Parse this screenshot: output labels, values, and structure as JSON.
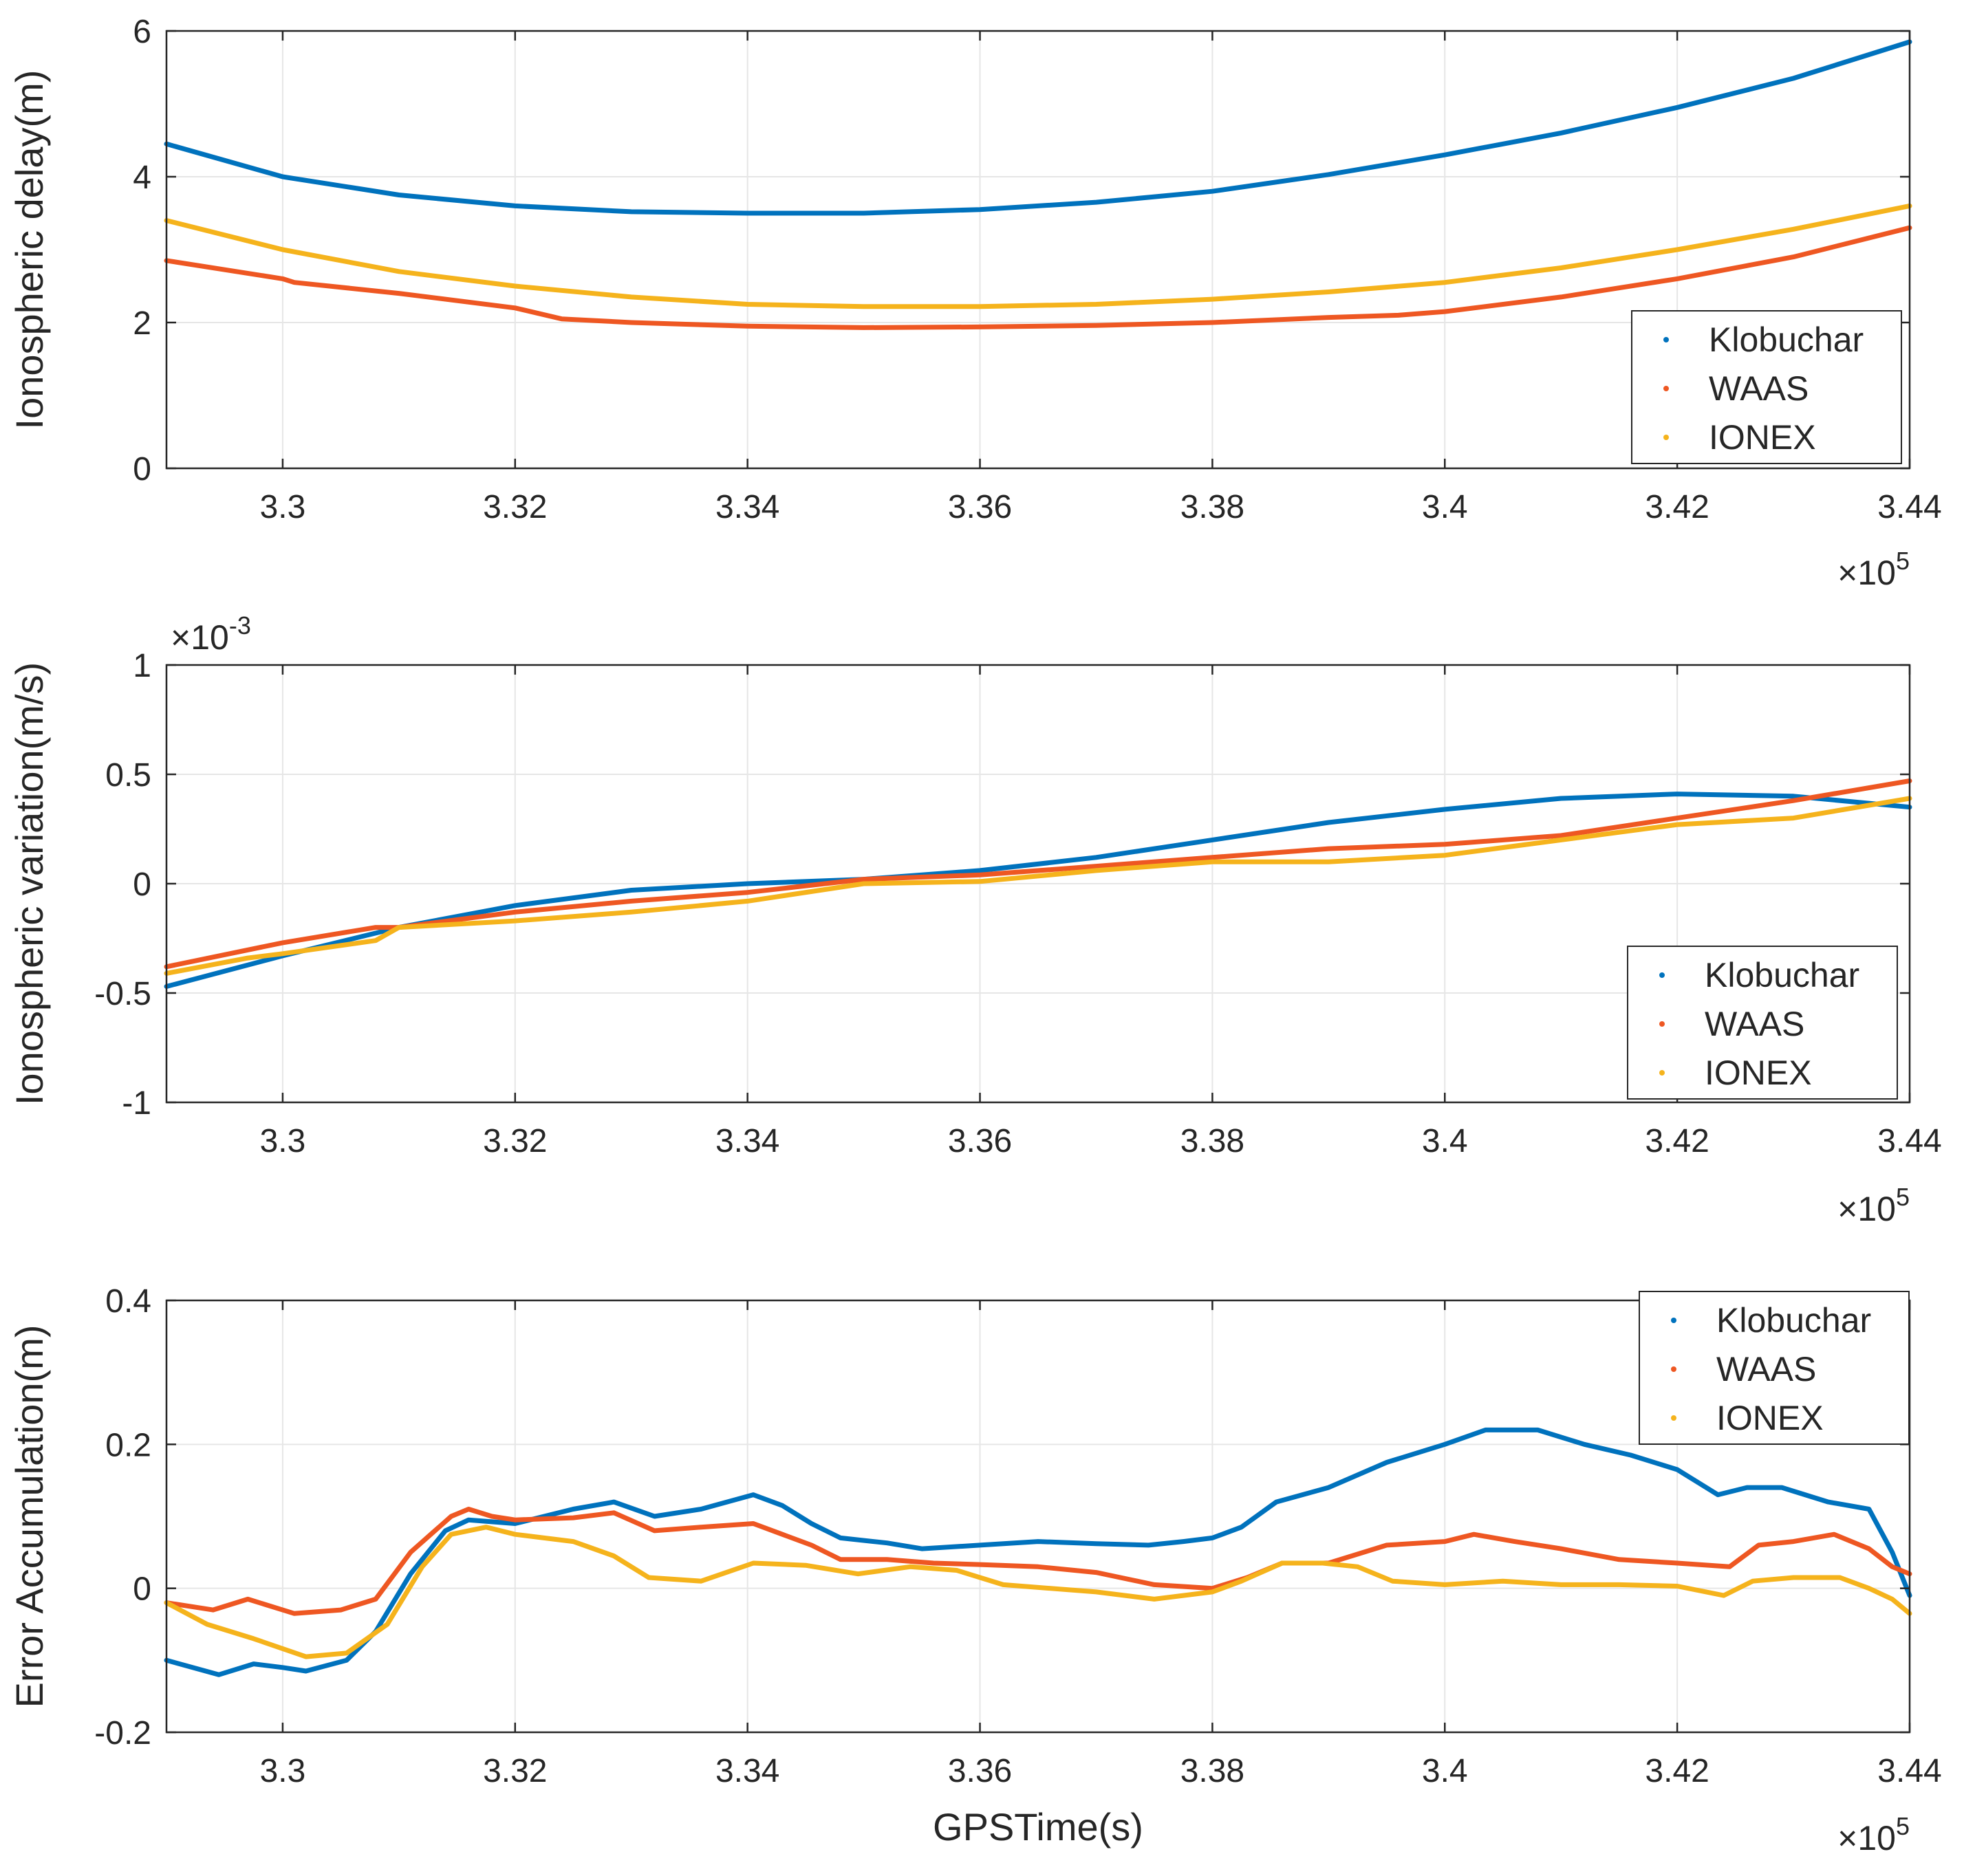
{
  "colors": {
    "Klobuchar": "#0072BD",
    "WAAS": "#EE5722",
    "IONEX": "#F5B31C",
    "grid": "#e6e6e6",
    "axis": "#262626"
  },
  "xlabel": "GPSTime(s)",
  "chart_data": [
    {
      "type": "line",
      "ylabel": "Ionospheric delay(m)",
      "xlim": [
        3.29,
        3.44
      ],
      "x_ticks": [
        3.3,
        3.32,
        3.34,
        3.36,
        3.38,
        3.4,
        3.42,
        3.44
      ],
      "x_tick_labels": [
        "3.3",
        "3.32",
        "3.34",
        "3.36",
        "3.38",
        "3.4",
        "3.42",
        "3.44"
      ],
      "x_multiplier": {
        "base": "×10",
        "exp": "5"
      },
      "ylim": [
        0,
        6
      ],
      "y_ticks": [
        0,
        2,
        4,
        6
      ],
      "y_tick_labels": [
        "0",
        "2",
        "4",
        "6"
      ],
      "legend": [
        "Klobuchar",
        "WAAS",
        "IONEX"
      ],
      "legend_position": "lower-right",
      "series": [
        {
          "name": "Klobuchar",
          "x": [
            3.29,
            3.3,
            3.31,
            3.32,
            3.33,
            3.34,
            3.35,
            3.36,
            3.37,
            3.38,
            3.39,
            3.4,
            3.41,
            3.42,
            3.43,
            3.44
          ],
          "y": [
            4.45,
            4.0,
            3.75,
            3.6,
            3.52,
            3.5,
            3.5,
            3.55,
            3.65,
            3.8,
            4.03,
            4.3,
            4.6,
            4.95,
            5.35,
            5.85
          ]
        },
        {
          "name": "WAAS",
          "x": [
            3.29,
            3.3,
            3.301,
            3.31,
            3.32,
            3.324,
            3.33,
            3.34,
            3.35,
            3.36,
            3.37,
            3.38,
            3.39,
            3.396,
            3.4,
            3.41,
            3.42,
            3.43,
            3.44
          ],
          "y": [
            2.85,
            2.6,
            2.55,
            2.4,
            2.2,
            2.05,
            2.0,
            1.95,
            1.93,
            1.94,
            1.96,
            2.0,
            2.07,
            2.1,
            2.15,
            2.35,
            2.6,
            2.9,
            3.3
          ]
        },
        {
          "name": "IONEX",
          "x": [
            3.29,
            3.3,
            3.31,
            3.32,
            3.33,
            3.34,
            3.35,
            3.36,
            3.37,
            3.38,
            3.39,
            3.4,
            3.41,
            3.42,
            3.43,
            3.44
          ],
          "y": [
            3.4,
            3.0,
            2.7,
            2.5,
            2.35,
            2.25,
            2.22,
            2.22,
            2.25,
            2.32,
            2.42,
            2.55,
            2.75,
            3.0,
            3.28,
            3.6
          ]
        }
      ]
    },
    {
      "type": "line",
      "ylabel": "Ionospheric variation(m/s)",
      "xlim": [
        3.29,
        3.44
      ],
      "x_ticks": [
        3.3,
        3.32,
        3.34,
        3.36,
        3.38,
        3.4,
        3.42,
        3.44
      ],
      "x_tick_labels": [
        "3.3",
        "3.32",
        "3.34",
        "3.36",
        "3.38",
        "3.4",
        "3.42",
        "3.44"
      ],
      "x_multiplier": {
        "base": "×10",
        "exp": "5"
      },
      "y_multiplier": {
        "base": "×10",
        "exp": "-3"
      },
      "ylim": [
        -1,
        1
      ],
      "y_ticks": [
        -1,
        -0.5,
        0,
        0.5,
        1
      ],
      "y_tick_labels": [
        "-1",
        "-0.5",
        "0",
        "0.5",
        "1"
      ],
      "legend": [
        "Klobuchar",
        "WAAS",
        "IONEX"
      ],
      "legend_position": "lower-right",
      "series": [
        {
          "name": "Klobuchar",
          "x": [
            3.29,
            3.3,
            3.31,
            3.32,
            3.33,
            3.34,
            3.35,
            3.36,
            3.37,
            3.38,
            3.39,
            3.4,
            3.41,
            3.42,
            3.43,
            3.44
          ],
          "y": [
            -0.47,
            -0.33,
            -0.2,
            -0.1,
            -0.03,
            0.0,
            0.02,
            0.06,
            0.12,
            0.2,
            0.28,
            0.34,
            0.39,
            0.41,
            0.4,
            0.35
          ]
        },
        {
          "name": "WAAS",
          "x": [
            3.29,
            3.3,
            3.308,
            3.31,
            3.32,
            3.33,
            3.34,
            3.35,
            3.36,
            3.37,
            3.38,
            3.39,
            3.4,
            3.41,
            3.42,
            3.43,
            3.44
          ],
          "y": [
            -0.38,
            -0.27,
            -0.2,
            -0.2,
            -0.13,
            -0.08,
            -0.04,
            0.02,
            0.04,
            0.08,
            0.12,
            0.16,
            0.18,
            0.22,
            0.3,
            0.38,
            0.47
          ]
        },
        {
          "name": "IONEX",
          "x": [
            3.29,
            3.297,
            3.3,
            3.308,
            3.31,
            3.32,
            3.33,
            3.34,
            3.35,
            3.36,
            3.37,
            3.38,
            3.39,
            3.4,
            3.41,
            3.42,
            3.43,
            3.44
          ],
          "y": [
            -0.41,
            -0.34,
            -0.32,
            -0.26,
            -0.2,
            -0.17,
            -0.13,
            -0.08,
            0.0,
            0.01,
            0.06,
            0.1,
            0.1,
            0.13,
            0.2,
            0.27,
            0.3,
            0.39
          ]
        }
      ]
    },
    {
      "type": "line",
      "ylabel": "Error Accumulation(m)",
      "xlabel": "GPSTime(s)",
      "xlim": [
        3.29,
        3.44
      ],
      "x_ticks": [
        3.3,
        3.32,
        3.34,
        3.36,
        3.38,
        3.4,
        3.42,
        3.44
      ],
      "x_tick_labels": [
        "3.3",
        "3.32",
        "3.34",
        "3.36",
        "3.38",
        "3.4",
        "3.42",
        "3.44"
      ],
      "x_multiplier": {
        "base": "×10",
        "exp": "5"
      },
      "ylim": [
        -0.2,
        0.4
      ],
      "y_ticks": [
        -0.2,
        0,
        0.2,
        0.4
      ],
      "y_tick_labels": [
        "-0.2",
        "0",
        "0.2",
        "0.4"
      ],
      "legend": [
        "Klobuchar",
        "WAAS",
        "IONEX"
      ],
      "legend_position": "top-right",
      "series": [
        {
          "name": "Klobuchar",
          "x": [
            3.29,
            3.2945,
            3.2975,
            3.3,
            3.302,
            3.3055,
            3.308,
            3.311,
            3.314,
            3.316,
            3.32,
            3.325,
            3.3285,
            3.332,
            3.336,
            3.3405,
            3.343,
            3.3455,
            3.348,
            3.352,
            3.355,
            3.36,
            3.365,
            3.37,
            3.3745,
            3.3775,
            3.38,
            3.3825,
            3.3855,
            3.39,
            3.395,
            3.4,
            3.4035,
            3.408,
            3.412,
            3.416,
            3.42,
            3.4235,
            3.426,
            3.429,
            3.433,
            3.4365,
            3.4385,
            3.44
          ],
          "y": [
            -0.1,
            -0.12,
            -0.105,
            -0.11,
            -0.115,
            -0.1,
            -0.06,
            0.02,
            0.08,
            0.095,
            0.09,
            0.11,
            0.12,
            0.1,
            0.11,
            0.13,
            0.115,
            0.09,
            0.07,
            0.063,
            0.055,
            0.06,
            0.065,
            0.062,
            0.06,
            0.065,
            0.07,
            0.085,
            0.12,
            0.14,
            0.175,
            0.2,
            0.22,
            0.22,
            0.2,
            0.185,
            0.165,
            0.13,
            0.14,
            0.14,
            0.12,
            0.11,
            0.05,
            -0.01
          ]
        },
        {
          "name": "WAAS",
          "x": [
            3.29,
            3.294,
            3.297,
            3.301,
            3.305,
            3.308,
            3.311,
            3.3145,
            3.316,
            3.318,
            3.32,
            3.325,
            3.3285,
            3.332,
            3.336,
            3.3405,
            3.343,
            3.3455,
            3.348,
            3.352,
            3.356,
            3.36,
            3.365,
            3.37,
            3.375,
            3.38,
            3.383,
            3.386,
            3.39,
            3.395,
            3.4,
            3.4025,
            3.406,
            3.41,
            3.415,
            3.42,
            3.4245,
            3.427,
            3.43,
            3.4335,
            3.4365,
            3.4385,
            3.44
          ],
          "y": [
            -0.02,
            -0.03,
            -0.015,
            -0.035,
            -0.03,
            -0.015,
            0.05,
            0.1,
            0.11,
            0.1,
            0.095,
            0.098,
            0.105,
            0.08,
            0.085,
            0.09,
            0.075,
            0.06,
            0.04,
            0.04,
            0.035,
            0.033,
            0.03,
            0.022,
            0.005,
            0.0,
            0.015,
            0.035,
            0.035,
            0.06,
            0.065,
            0.075,
            0.065,
            0.055,
            0.04,
            0.035,
            0.03,
            0.06,
            0.065,
            0.075,
            0.055,
            0.03,
            0.02
          ]
        },
        {
          "name": "IONEX",
          "x": [
            3.29,
            3.2935,
            3.2975,
            3.302,
            3.3055,
            3.309,
            3.312,
            3.3145,
            3.3175,
            3.32,
            3.325,
            3.3285,
            3.3315,
            3.336,
            3.3405,
            3.345,
            3.3495,
            3.354,
            3.358,
            3.362,
            3.37,
            3.375,
            3.38,
            3.3825,
            3.386,
            3.3895,
            3.3925,
            3.3955,
            3.4,
            3.405,
            3.41,
            3.415,
            3.42,
            3.424,
            3.4265,
            3.43,
            3.434,
            3.4365,
            3.4385,
            3.44
          ],
          "y": [
            -0.02,
            -0.05,
            -0.07,
            -0.095,
            -0.09,
            -0.05,
            0.03,
            0.075,
            0.085,
            0.075,
            0.065,
            0.045,
            0.015,
            0.01,
            0.035,
            0.032,
            0.02,
            0.03,
            0.025,
            0.005,
            -0.005,
            -0.015,
            -0.005,
            0.01,
            0.035,
            0.035,
            0.03,
            0.01,
            0.005,
            0.01,
            0.005,
            0.005,
            0.003,
            -0.01,
            0.01,
            0.015,
            0.015,
            0.0,
            -0.015,
            -0.035
          ]
        }
      ]
    }
  ]
}
